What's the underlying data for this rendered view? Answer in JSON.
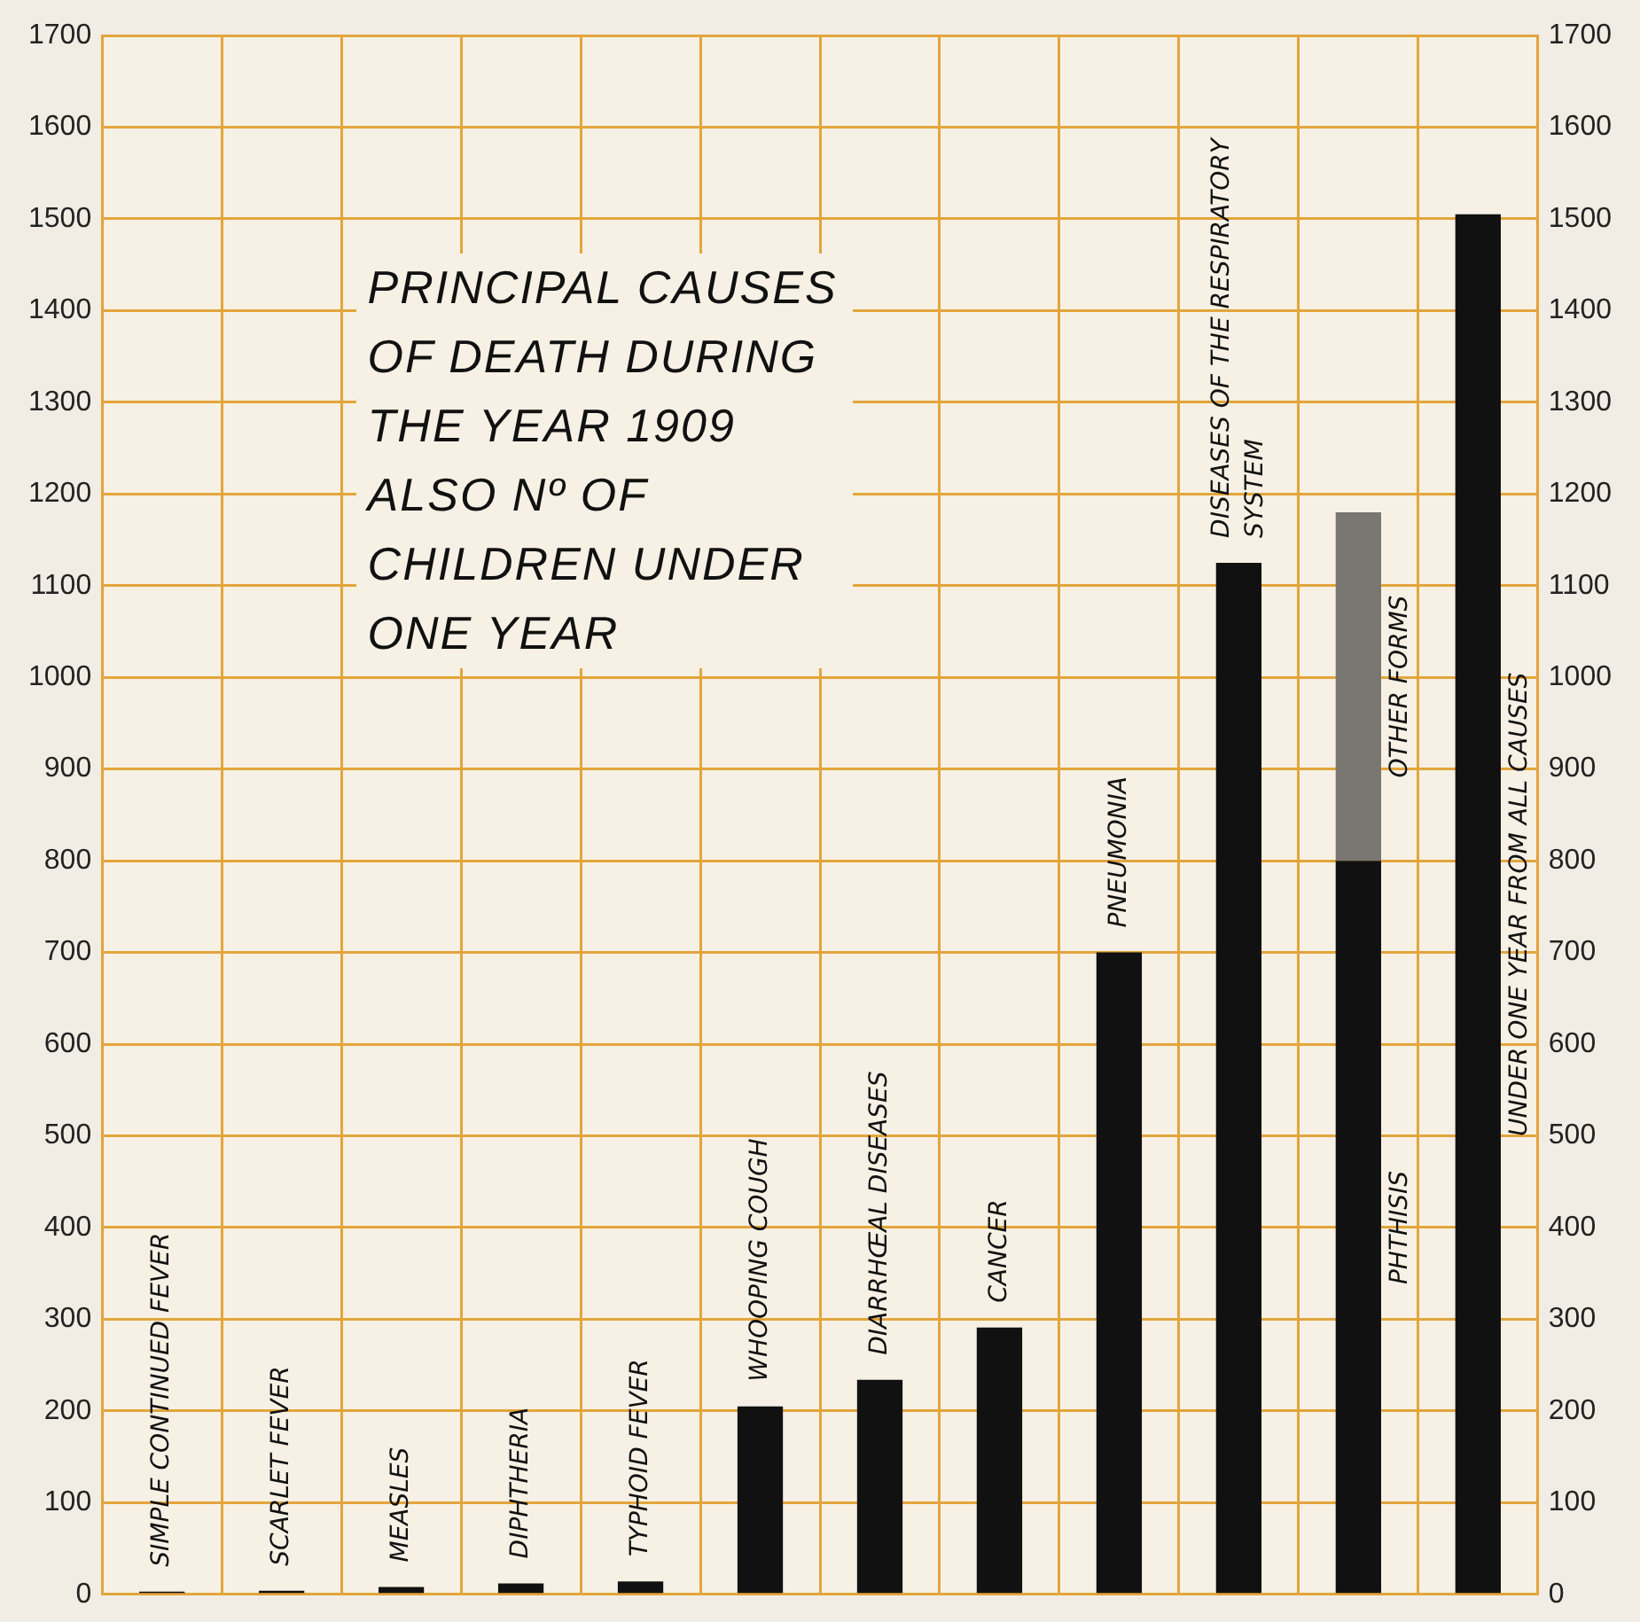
{
  "chart_data": {
    "type": "bar",
    "title": "PRINCIPAL CAUSES OF DEATH DURING THE YEAR 1909 ALSO Nº OF CHILDREN UNDER ONE YEAR",
    "categories": [
      "SIMPLE CONTINUED FEVER",
      "SCARLET FEVER",
      "MEASLES",
      "DIPHTHERIA",
      "TYPHOID FEVER",
      "WHOOPING COUGH",
      "DIARRHŒAL DISEASES",
      "CANCER",
      "PNEUMONIA",
      "DISEASES OF THE RESPIRATORY SYSTEM",
      "PHTHISIS",
      "UNDER ONE YEAR FROM ALL CAUSES"
    ],
    "stacked": true,
    "series": [
      {
        "color": "#111111",
        "values": [
          3,
          4,
          8,
          12,
          14,
          205,
          234,
          291,
          700,
          1125,
          800,
          1505
        ]
      },
      {
        "name": "OTHER FORMS",
        "color": "#7a7670",
        "values": [
          null,
          null,
          null,
          null,
          null,
          null,
          null,
          null,
          null,
          null,
          380,
          null
        ]
      }
    ],
    "ylim": [
      0,
      1700
    ],
    "yticks": [
      0,
      100,
      200,
      300,
      400,
      500,
      600,
      700,
      800,
      900,
      1000,
      1100,
      1200,
      1300,
      1400,
      1500,
      1600,
      1700
    ],
    "y2lim": [
      0,
      1700
    ],
    "y2ticks": [
      0,
      100,
      200,
      300,
      400,
      500,
      600,
      700,
      800,
      900,
      1000,
      1100,
      1200,
      1300,
      1400,
      1500,
      1600,
      1700
    ],
    "grid": true,
    "legend": false
  }
}
